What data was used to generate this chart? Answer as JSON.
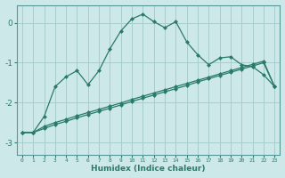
{
  "xlabel": "Humidex (Indice chaleur)",
  "bg_color": "#cde8e8",
  "grid_color": "#a8cccc",
  "line_color": "#2a7a6a",
  "xlim": [
    -0.5,
    23.5
  ],
  "ylim": [
    -3.3,
    0.45
  ],
  "x_ticks": [
    0,
    1,
    2,
    3,
    4,
    5,
    6,
    7,
    8,
    9,
    10,
    11,
    12,
    13,
    14,
    15,
    16,
    17,
    18,
    19,
    20,
    21,
    22,
    23
  ],
  "y_ticks": [
    0,
    -1,
    -2,
    -3
  ],
  "curve1_x": [
    0,
    1,
    2,
    3,
    4,
    5,
    6,
    7,
    8,
    9,
    10,
    11,
    12,
    13,
    14,
    15,
    16,
    17,
    18,
    19,
    20,
    21,
    22,
    23
  ],
  "curve1_y": [
    -2.75,
    -2.75,
    -2.35,
    -1.6,
    -1.35,
    -1.2,
    -1.55,
    -1.2,
    -0.65,
    -0.2,
    0.1,
    0.22,
    0.03,
    -0.12,
    0.03,
    -0.48,
    -0.8,
    -1.05,
    -0.88,
    -0.85,
    -1.05,
    -1.1,
    -1.3,
    -1.6
  ],
  "curve2_x": [
    0,
    1,
    2,
    3,
    4,
    5,
    6,
    7,
    8,
    9,
    10,
    11,
    12,
    13,
    14,
    15,
    16,
    17,
    18,
    19,
    20,
    21,
    22,
    23
  ],
  "curve2_y": [
    -2.75,
    -2.75,
    -2.65,
    -2.55,
    -2.47,
    -2.38,
    -2.3,
    -2.22,
    -2.14,
    -2.06,
    -1.97,
    -1.89,
    -1.81,
    -1.73,
    -1.65,
    -1.57,
    -1.48,
    -1.4,
    -1.32,
    -1.24,
    -1.16,
    -1.08,
    -1.0,
    -1.6
  ],
  "curve3_x": [
    0,
    1,
    2,
    3,
    4,
    5,
    6,
    7,
    8,
    9,
    10,
    11,
    12,
    13,
    14,
    15,
    16,
    17,
    18,
    19,
    20,
    21,
    22,
    23
  ],
  "curve3_y": [
    -2.75,
    -2.75,
    -2.6,
    -2.5,
    -2.42,
    -2.33,
    -2.25,
    -2.17,
    -2.09,
    -2.01,
    -1.92,
    -1.84,
    -1.76,
    -1.68,
    -1.6,
    -1.52,
    -1.44,
    -1.36,
    -1.28,
    -1.2,
    -1.12,
    -1.04,
    -0.96,
    -1.6
  ]
}
